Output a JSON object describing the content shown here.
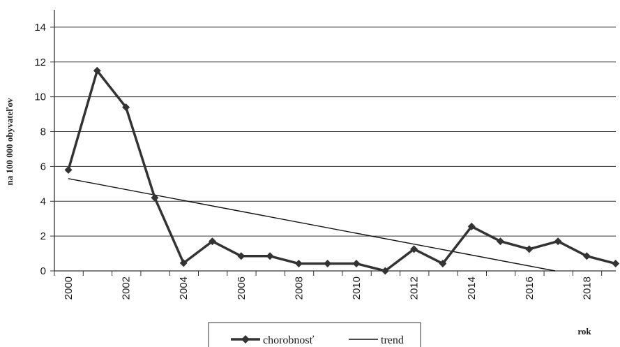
{
  "chart_data": {
    "type": "line",
    "ylabel": "na 100 000 obyvateľov",
    "xlabel": "rok",
    "x": [
      2000,
      2001,
      2002,
      2003,
      2004,
      2005,
      2006,
      2007,
      2008,
      2009,
      2010,
      2011,
      2012,
      2013,
      2014,
      2015,
      2016,
      2017,
      2018,
      2019
    ],
    "x_tick_labels": [
      "2000",
      "2002",
      "2004",
      "2006",
      "2008",
      "2010",
      "2012",
      "2014",
      "2016",
      "2018"
    ],
    "xlim": [
      2000,
      2019
    ],
    "ylim": [
      0,
      15
    ],
    "y_ticks": [
      0,
      2,
      4,
      6,
      8,
      10,
      12,
      14
    ],
    "grid": true,
    "legend_position": "bottom",
    "series": [
      {
        "name": "chorobnosť",
        "color": "#333333",
        "marker": "diamond",
        "values": [
          5.8,
          11.5,
          9.4,
          4.2,
          0.45,
          1.7,
          0.85,
          0.85,
          0.42,
          0.42,
          0.42,
          0.0,
          1.25,
          0.42,
          2.55,
          1.7,
          1.25,
          1.7,
          0.85,
          0.42
        ]
      },
      {
        "name": "trend",
        "color": "#111111",
        "marker": "none",
        "line": {
          "x": [
            2000,
            2016.9
          ],
          "y": [
            5.3,
            0
          ]
        }
      }
    ]
  }
}
